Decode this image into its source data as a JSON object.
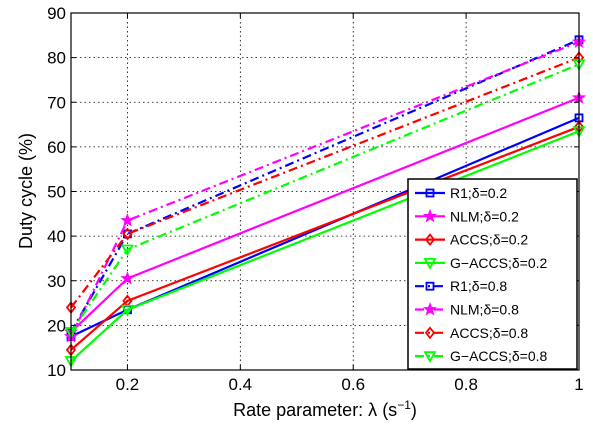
{
  "chart_data": {
    "type": "line",
    "title": "",
    "xlabel": "Rate parameter: λ (s",
    "xlabel_exponent": "−1",
    "xlabel_suffix": ")",
    "ylabel": "Duty cycle (%)",
    "xlim": [
      0.1,
      1.0
    ],
    "ylim": [
      10,
      90
    ],
    "x_ticks": [
      0.2,
      0.4,
      0.6,
      0.8,
      1
    ],
    "x_tick_labels": [
      "0.2",
      "0.4",
      "0.6",
      "0.8",
      "1"
    ],
    "y_ticks": [
      10,
      20,
      30,
      40,
      50,
      60,
      70,
      80,
      90
    ],
    "y_tick_labels": [
      "10",
      "20",
      "30",
      "40",
      "50",
      "60",
      "70",
      "80",
      "90"
    ],
    "grid": true,
    "legend_position": "bottom-right",
    "x": [
      0.1,
      0.2,
      1.0
    ],
    "series": [
      {
        "name": "R1;δ=0.2",
        "values": [
          17.5,
          23.5,
          66.5
        ],
        "color": "#0000ff",
        "dash": "solid",
        "marker": "square"
      },
      {
        "name": "NLM;δ=0.2",
        "values": [
          18.5,
          30.5,
          71
        ],
        "color": "#ff00ff",
        "dash": "solid",
        "marker": "star"
      },
      {
        "name": "ACCS;δ=0.2",
        "values": [
          14.5,
          25.5,
          64.5
        ],
        "color": "#ff0000",
        "dash": "solid",
        "marker": "diamond"
      },
      {
        "name": "G−ACCS;δ=0.2",
        "values": [
          12,
          23.5,
          63.5
        ],
        "color": "#00ff00",
        "dash": "solid",
        "marker": "triangle-down"
      },
      {
        "name": "R1;δ=0.8",
        "values": [
          18.5,
          40.5,
          84
        ],
        "color": "#0000ff",
        "dash": "dashdot",
        "marker": "square"
      },
      {
        "name": "NLM;δ=0.8",
        "values": [
          17.5,
          43.5,
          83.5
        ],
        "color": "#ff00ff",
        "dash": "dashdot",
        "marker": "star"
      },
      {
        "name": "ACCS;δ=0.8",
        "values": [
          24,
          40.5,
          80
        ],
        "color": "#ff0000",
        "dash": "dashdot",
        "marker": "diamond"
      },
      {
        "name": "G−ACCS;δ=0.8",
        "values": [
          18.5,
          37,
          78.5
        ],
        "color": "#00ff00",
        "dash": "dashdot",
        "marker": "triangle-down"
      }
    ]
  }
}
